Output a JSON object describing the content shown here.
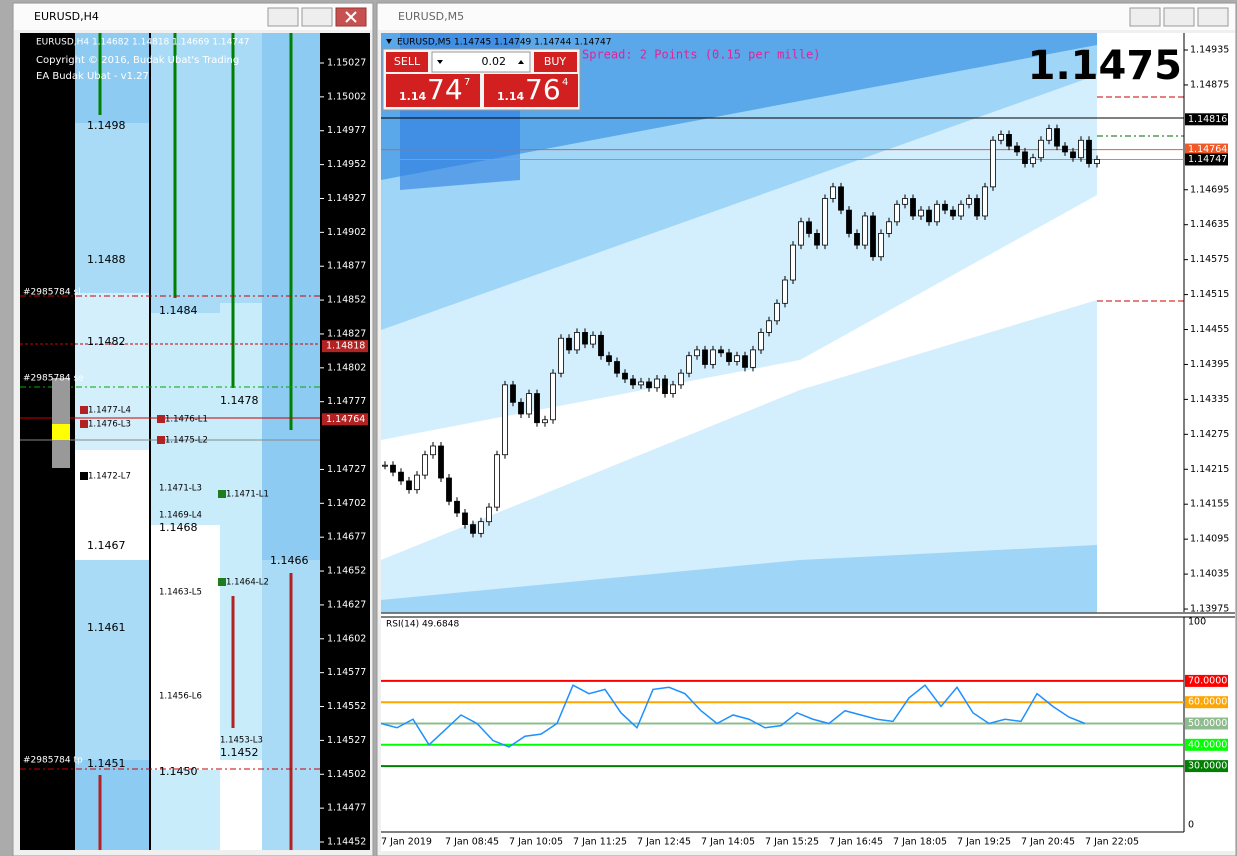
{
  "left_window": {
    "title": "EURUSD,H4",
    "header": "EURUSD,H4  1.14682 1.14818 1.14669 1.14747",
    "copyright": "Copyright © 2016, Budak Ubat's Trading",
    "ea": "EA Budak Ubat - v1.27",
    "price_axis": [
      1.15027,
      1.15002,
      1.14977,
      1.14952,
      1.14927,
      1.14902,
      1.14877,
      1.14852,
      1.14827,
      1.14802,
      1.14777,
      1.14727,
      1.14702,
      1.14677,
      1.14652,
      1.14627,
      1.14602,
      1.14577,
      1.14552,
      1.14527,
      1.14502,
      1.14477,
      1.14452
    ],
    "price_markers": [
      1.14818,
      1.14764
    ],
    "levels": [
      "1.1498",
      "1.1488",
      "1.1482",
      "1.1484",
      "1.1478",
      "1.1477-L4",
      "1.1476-L3",
      "1.1476-L1",
      "1.1475-L2",
      "1.1472-L7",
      "1.1471-L3",
      "1.1471-L1",
      "1.1469-L4",
      "1.1468",
      "1.1467",
      "1.1466",
      "1.1464-L2",
      "1.1463-L5",
      "1.1461",
      "1.1456-L6",
      "1.1453-L3",
      "1.1452",
      "1.1451",
      "1.1450"
    ],
    "orders": [
      "#2985784 sl",
      "#2985784 se",
      "#2985784 tp"
    ]
  },
  "right_window": {
    "title": "EURUSD,M5",
    "header": "EURUSD,M5  1.14745 1.14749 1.14744 1.14747",
    "spread": "Spread: 2 Points (0.15 per mille)",
    "big_price": "1.1475",
    "trade_panel": {
      "sell": "SELL",
      "lot": "0.02",
      "buy": "BUY",
      "bid_prefix": "1.14",
      "bid_big": "74",
      "bid_small": "7",
      "ask_prefix": "1.14",
      "ask_big": "76",
      "ask_small": "4"
    },
    "price_axis": [
      1.14935,
      1.14875,
      1.14695,
      1.14635,
      1.14575,
      1.14515,
      1.14455,
      1.14395,
      1.14335,
      1.14275,
      1.14215,
      1.14155,
      1.14095,
      1.14035,
      1.13975
    ],
    "price_markers": [
      1.14816,
      1.14764,
      1.14747
    ],
    "closes": [
      1.14222,
      1.1421,
      1.14195,
      1.1418,
      1.14205,
      1.1424,
      1.14255,
      1.142,
      1.1416,
      1.1414,
      1.1412,
      1.14105,
      1.14125,
      1.1415,
      1.1424,
      1.1436,
      1.1433,
      1.1431,
      1.14345,
      1.14295,
      1.143,
      1.1438,
      1.1444,
      1.1442,
      1.1445,
      1.1443,
      1.14445,
      1.1441,
      1.144,
      1.1438,
      1.1437,
      1.1436,
      1.14365,
      1.14355,
      1.1437,
      1.14345,
      1.1436,
      1.1438,
      1.1441,
      1.1442,
      1.14395,
      1.1442,
      1.14415,
      1.144,
      1.1441,
      1.1439,
      1.1442,
      1.1445,
      1.1447,
      1.145,
      1.1454,
      1.146,
      1.1464,
      1.1462,
      1.146,
      1.1468,
      1.147,
      1.1466,
      1.1462,
      1.146,
      1.1465,
      1.1458,
      1.1462,
      1.1464,
      1.1467,
      1.1468,
      1.1465,
      1.1466,
      1.1464,
      1.1467,
      1.1466,
      1.1465,
      1.1467,
      1.1468,
      1.1465,
      1.147,
      1.1478,
      1.1479,
      1.1477,
      1.1476,
      1.1474,
      1.1475,
      1.1478,
      1.148,
      1.1477,
      1.1476,
      1.1475,
      1.1478,
      1.1474,
      1.14747
    ],
    "time_labels": [
      "7 Jan 2019",
      "7 Jan 08:45",
      "7 Jan 10:05",
      "7 Jan 11:25",
      "7 Jan 12:45",
      "7 Jan 14:05",
      "7 Jan 15:25",
      "7 Jan 16:45",
      "7 Jan 18:05",
      "7 Jan 19:25",
      "7 Jan 20:45",
      "7 Jan 22:05"
    ],
    "rsi": {
      "title": "RSI(14) 49.6848",
      "ylim": [
        0,
        100
      ],
      "yticks": [
        0,
        100
      ],
      "levels": [
        {
          "value": 70,
          "label": "70.0000",
          "color": "#ff0000"
        },
        {
          "value": 60,
          "label": "60.0000",
          "color": "#ffa500"
        },
        {
          "value": 50,
          "label": "50.0000",
          "color": "#8fbc8f"
        },
        {
          "value": 40,
          "label": "40.0000",
          "color": "#00ff00"
        },
        {
          "value": 30,
          "label": "30.0000",
          "color": "#008000"
        }
      ],
      "values": [
        50,
        48,
        52,
        40,
        47,
        54,
        50,
        42,
        39,
        44,
        45,
        50,
        68,
        64,
        66,
        55,
        48,
        66,
        67,
        64,
        56,
        50,
        54,
        52,
        48,
        49,
        55,
        52,
        50,
        56,
        54,
        52,
        51,
        62,
        68,
        58,
        67,
        55,
        50,
        52,
        51,
        64,
        58,
        53,
        50
      ]
    }
  }
}
